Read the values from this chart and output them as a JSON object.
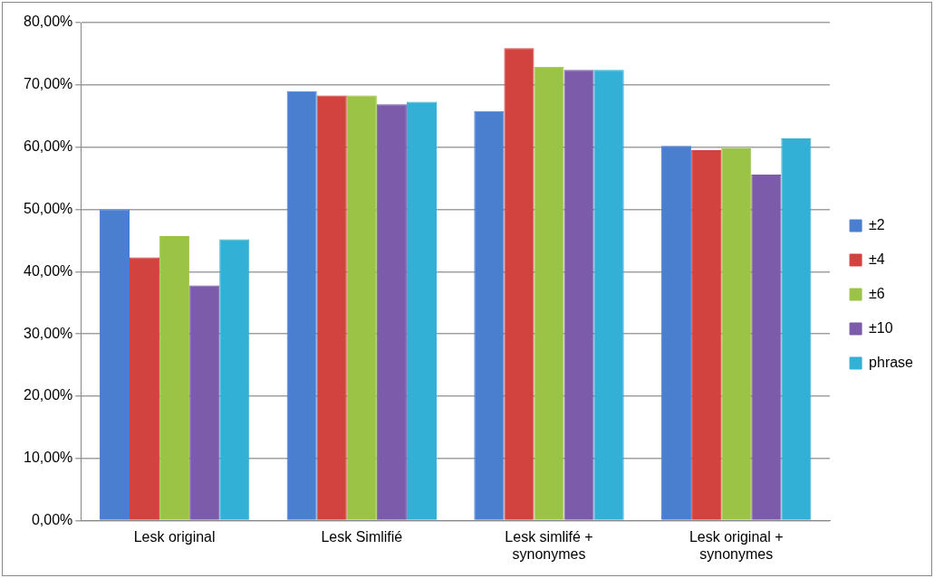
{
  "chart_data": {
    "type": "bar",
    "categories": [
      "Lesk original",
      "Lesk Simlifié",
      "Lesk simlifé + synonymes",
      "Lesk original + synonymes"
    ],
    "series": [
      {
        "name": "±2",
        "color": "#4a7fcf",
        "values": [
          50.0,
          69.0,
          65.8,
          60.2
        ]
      },
      {
        "name": "±4",
        "color": "#d24340",
        "values": [
          42.3,
          68.3,
          75.9,
          59.5
        ]
      },
      {
        "name": "±6",
        "color": "#9bc446",
        "values": [
          45.7,
          68.3,
          72.9,
          59.8
        ]
      },
      {
        "name": "±10",
        "color": "#7d5bab",
        "values": [
          37.8,
          66.9,
          72.4,
          55.6
        ]
      },
      {
        "name": "phrase",
        "color": "#33b0d5",
        "values": [
          45.2,
          67.3,
          72.4,
          61.4
        ]
      }
    ],
    "ylim": [
      0,
      80
    ],
    "yticks": [
      {
        "value": 0,
        "label": "0,00%"
      },
      {
        "value": 10,
        "label": "10,00%"
      },
      {
        "value": 20,
        "label": "20,00%"
      },
      {
        "value": 30,
        "label": "30,00%"
      },
      {
        "value": 40,
        "label": "40,00%"
      },
      {
        "value": 50,
        "label": "50,00%"
      },
      {
        "value": 60,
        "label": "60,00%"
      },
      {
        "value": 70,
        "label": "70,00%"
      },
      {
        "value": 80,
        "label": "80,00%"
      }
    ],
    "grid": "y",
    "legend": "right"
  }
}
